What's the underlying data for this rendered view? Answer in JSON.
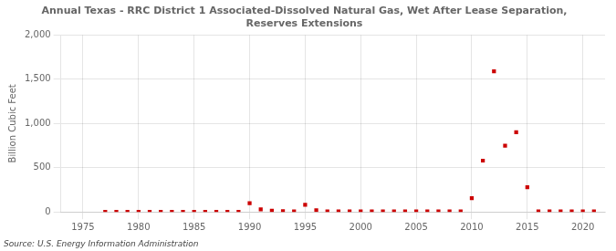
{
  "chart_data": {
    "type": "scatter",
    "title": "Annual Texas - RRC District 1 Associated-Dissolved Natural Gas, Wet After Lease Separation,\nReserves Extensions",
    "ylabel": "Billion Cubic Feet",
    "source": "Source: U.S. Energy Information Administration",
    "x": [
      1977,
      1978,
      1979,
      1980,
      1981,
      1982,
      1983,
      1984,
      1985,
      1986,
      1987,
      1988,
      1989,
      1990,
      1991,
      1992,
      1993,
      1994,
      1995,
      1996,
      1997,
      1998,
      1999,
      2000,
      2001,
      2002,
      2003,
      2004,
      2005,
      2006,
      2007,
      2008,
      2009,
      2010,
      2011,
      2012,
      2013,
      2014,
      2015,
      2016,
      2017,
      2018,
      2019,
      2020,
      2021
    ],
    "values": [
      2,
      2,
      2,
      2,
      2,
      2,
      2,
      2,
      2,
      2,
      2,
      2,
      2,
      100,
      30,
      15,
      8,
      5,
      80,
      20,
      5,
      5,
      5,
      5,
      5,
      5,
      5,
      5,
      5,
      5,
      5,
      5,
      5,
      155,
      580,
      1590,
      750,
      900,
      280,
      5,
      5,
      5,
      5,
      5,
      5
    ],
    "color": "#cc0000",
    "marker": "square",
    "xlim": [
      1973,
      2022
    ],
    "xticks": [
      1975,
      1980,
      1985,
      1990,
      1995,
      2000,
      2005,
      2010,
      2015,
      2020
    ],
    "ylim": [
      0,
      2000
    ],
    "yticks": [
      0,
      500,
      {
        "value": 1000,
        "label": "1,000"
      },
      {
        "value": 1500,
        "label": "1,500"
      },
      {
        "value": 2000,
        "label": "2,000"
      }
    ],
    "grid": true
  }
}
